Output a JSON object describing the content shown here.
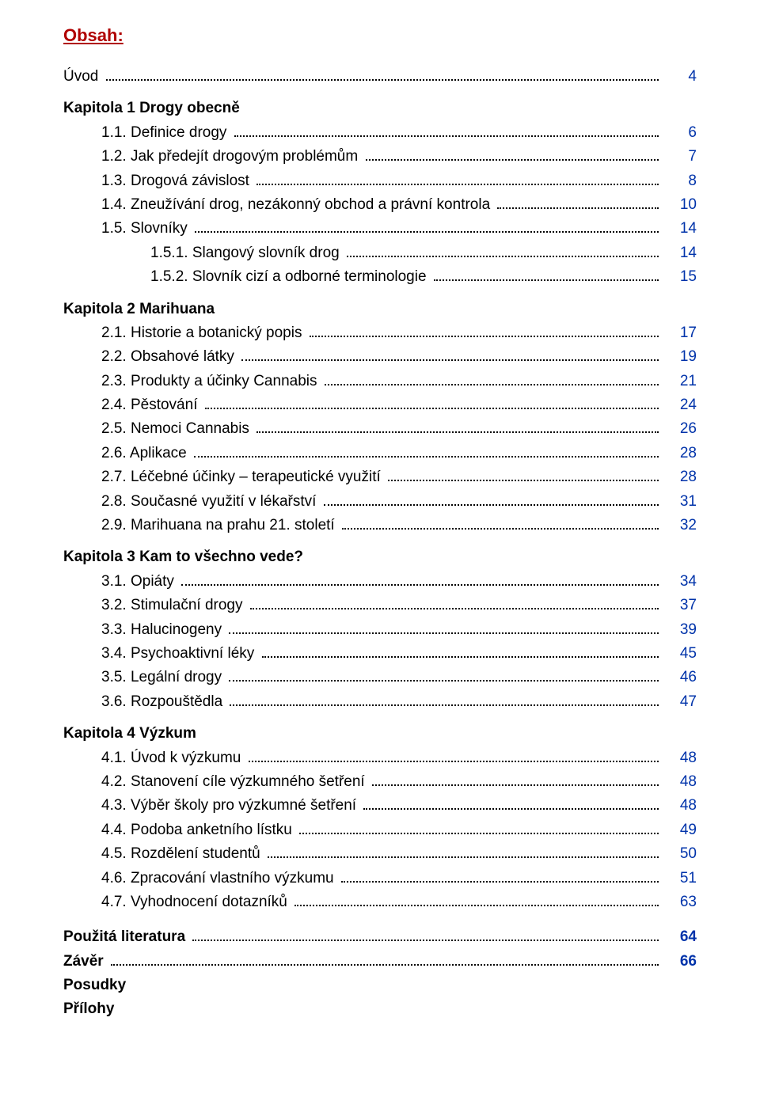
{
  "colors": {
    "heading": "#b00000",
    "text": "#000000",
    "page_link": "#0033aa",
    "background": "#ffffff"
  },
  "typography": {
    "body_font": "Verdana, Tahoma, Arial, sans-serif",
    "body_size_pt": 14,
    "heading_size_pt": 16,
    "line_height": 1.6
  },
  "heading": "Obsah:",
  "toc": [
    {
      "type": "entry",
      "indent": 0,
      "label": "Úvod",
      "page": "4",
      "bold": false
    },
    {
      "type": "chapter",
      "indent": 0,
      "label": "Kapitola 1 Drogy obecně"
    },
    {
      "type": "entry",
      "indent": 1,
      "label": "1.1. Definice drogy",
      "page": "6"
    },
    {
      "type": "entry",
      "indent": 1,
      "label": "1.2. Jak předejít drogovým problémům",
      "page": "7"
    },
    {
      "type": "entry",
      "indent": 1,
      "label": "1.3. Drogová závislost",
      "page": "8"
    },
    {
      "type": "entry",
      "indent": 1,
      "label": "1.4. Zneužívání drog, nezákonný obchod a právní kontrola",
      "page": "10"
    },
    {
      "type": "entry",
      "indent": 1,
      "label": "1.5. Slovníky",
      "page": "14"
    },
    {
      "type": "entry",
      "indent": 2,
      "label": "1.5.1. Slangový slovník drog",
      "page": "14"
    },
    {
      "type": "entry",
      "indent": 2,
      "label": "1.5.2. Slovník cizí a odborné terminologie",
      "page": "15"
    },
    {
      "type": "chapter",
      "indent": 0,
      "label": "Kapitola 2 Marihuana"
    },
    {
      "type": "entry",
      "indent": 1,
      "label": "2.1. Historie a botanický popis",
      "page": "17"
    },
    {
      "type": "entry",
      "indent": 1,
      "label": "2.2. Obsahové látky",
      "page": "19"
    },
    {
      "type": "entry",
      "indent": 1,
      "label": "2.3. Produkty a účinky Cannabis",
      "page": "21"
    },
    {
      "type": "entry",
      "indent": 1,
      "label": "2.4. Pěstování",
      "page": "24"
    },
    {
      "type": "entry",
      "indent": 1,
      "label": "2.5. Nemoci Cannabis",
      "page": "26"
    },
    {
      "type": "entry",
      "indent": 1,
      "label": "2.6. Aplikace",
      "page": "28"
    },
    {
      "type": "entry",
      "indent": 1,
      "label": "2.7. Léčebné účinky – terapeutické využití",
      "page": "28"
    },
    {
      "type": "entry",
      "indent": 1,
      "label": "2.8. Současné využití v lékařství",
      "page": "31"
    },
    {
      "type": "entry",
      "indent": 1,
      "label": "2.9. Marihuana na prahu 21. století",
      "page": "32"
    },
    {
      "type": "chapter",
      "indent": 0,
      "label": "Kapitola 3 Kam to všechno vede?"
    },
    {
      "type": "entry",
      "indent": 1,
      "label": "3.1. Opiáty",
      "page": "34"
    },
    {
      "type": "entry",
      "indent": 1,
      "label": "3.2. Stimulační drogy",
      "page": "37"
    },
    {
      "type": "entry",
      "indent": 1,
      "label": "3.3. Halucinogeny",
      "page": "39"
    },
    {
      "type": "entry",
      "indent": 1,
      "label": "3.4. Psychoaktivní léky",
      "page": "45"
    },
    {
      "type": "entry",
      "indent": 1,
      "label": "3.5. Legální drogy",
      "page": "46"
    },
    {
      "type": "entry",
      "indent": 1,
      "label": "3.6. Rozpouštědla",
      "page": "47"
    },
    {
      "type": "chapter",
      "indent": 0,
      "label": "Kapitola 4 Výzkum"
    },
    {
      "type": "entry",
      "indent": 1,
      "label": "4.1. Úvod k výzkumu",
      "page": "48"
    },
    {
      "type": "entry",
      "indent": 1,
      "label": "4.2. Stanovení cíle výzkumného šetření",
      "page": "48"
    },
    {
      "type": "entry",
      "indent": 1,
      "label": "4.3. Výběr školy pro výzkumné šetření",
      "page": "48"
    },
    {
      "type": "entry",
      "indent": 1,
      "label": "4.4. Podoba anketního lístku",
      "page": "49"
    },
    {
      "type": "entry",
      "indent": 1,
      "label": "4.5. Rozdělení studentů",
      "page": "50"
    },
    {
      "type": "entry",
      "indent": 1,
      "label": "4.6. Zpracování vlastního výzkumu",
      "page": "51"
    },
    {
      "type": "entry",
      "indent": 1,
      "label": "4.7. Vyhodnocení dotazníků",
      "page": "63"
    }
  ],
  "end_items": [
    {
      "type": "entry",
      "indent": 0,
      "label": "Použitá literatura",
      "page": "64",
      "bold": true
    },
    {
      "type": "entry",
      "indent": 0,
      "label": "Závěr",
      "page": "66",
      "bold": true
    },
    {
      "type": "plain",
      "indent": 0,
      "label": "Posudky",
      "bold": true
    },
    {
      "type": "plain",
      "indent": 0,
      "label": "Přílohy",
      "bold": true
    }
  ]
}
